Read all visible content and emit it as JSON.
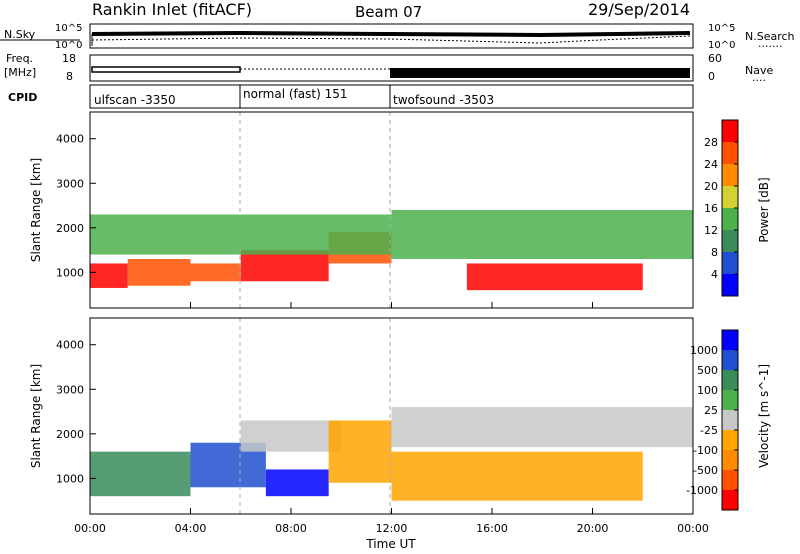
{
  "header": {
    "station": "Rankin Inlet (fitACF)",
    "beam": "Beam 07",
    "date": "29/Sep/2014"
  },
  "sky_panel": {
    "left_label": "N.Sky",
    "right_label": "N.Search",
    "ytick_top": "10^5",
    "ytick_bottom": "10^0",
    "right_legend_dots": "·······"
  },
  "freq_panel": {
    "left_label_line1": "Freq.",
    "left_label_line2": "[MHz]",
    "left_tick_top": "18",
    "left_tick_bottom": "8",
    "right_tick_top": "60",
    "right_tick_bottom": "0",
    "right_label": "Nave",
    "right_legend_dots": "····"
  },
  "cpid_panel": {
    "label": "CPID",
    "segments": [
      {
        "name": "ulfscan -3350",
        "start_hour": 0,
        "end_hour": 6
      },
      {
        "name": "normal (fast) 151",
        "start_hour": 6,
        "end_hour": 12
      },
      {
        "name": "twofsound -3503",
        "start_hour": 12,
        "end_hour": 24
      }
    ]
  },
  "colors": {
    "power": [
      "#0000ff",
      "#2050d0",
      "#3a8c5a",
      "#4cb04c",
      "#d2d232",
      "#ff8c00",
      "#ff5000",
      "#ff0000"
    ],
    "velocity": [
      "#0000ff",
      "#2050d0",
      "#3a8c5a",
      "#4cb04c",
      "#c8c8c8",
      "#ffa500",
      "#ff8c00",
      "#ff5000",
      "#ff0000"
    ]
  },
  "chart_data": [
    {
      "type": "heatmap",
      "name": "power",
      "ylabel": "Slant Range [km]",
      "xlim": [
        0,
        24
      ],
      "ylim": [
        200,
        4600
      ],
      "yticks": [
        1000,
        2000,
        3000,
        4000
      ],
      "xticks": [
        "00:00",
        "04:00",
        "08:00",
        "12:00",
        "16:00",
        "20:00",
        "00:00"
      ],
      "colorbar": {
        "label": "Power [dB]",
        "ticks": [
          "4",
          "8",
          "12",
          "16",
          "20",
          "24",
          "28"
        ],
        "range": [
          0,
          32
        ]
      },
      "bands": [
        {
          "x": [
            0,
            1.5
          ],
          "y": [
            650,
            1200
          ],
          "value": 28
        },
        {
          "x": [
            1.5,
            4
          ],
          "y": [
            700,
            1300
          ],
          "value": 26
        },
        {
          "x": [
            4,
            6
          ],
          "y": [
            800,
            1200
          ],
          "value": 24
        },
        {
          "x": [
            6,
            9.5
          ],
          "y": [
            800,
            1500
          ],
          "value": 28
        },
        {
          "x": [
            9.5,
            12
          ],
          "y": [
            1200,
            1900
          ],
          "value": 26
        },
        {
          "x": [
            15,
            22
          ],
          "y": [
            600,
            1200
          ],
          "value": 28
        },
        {
          "x": [
            0,
            12
          ],
          "y": [
            1400,
            2300
          ],
          "value": 12
        },
        {
          "x": [
            12,
            24
          ],
          "y": [
            1300,
            2400
          ],
          "value": 14
        }
      ]
    },
    {
      "type": "heatmap",
      "name": "velocity",
      "ylabel": "Slant Range [km]",
      "xlabel": "Time UT",
      "xlim": [
        0,
        24
      ],
      "ylim": [
        200,
        4600
      ],
      "yticks": [
        1000,
        2000,
        3000,
        4000
      ],
      "xticks": [
        "00:00",
        "04:00",
        "08:00",
        "12:00",
        "16:00",
        "20:00",
        "00:00"
      ],
      "colorbar": {
        "label": "Velocity [m s^-1]",
        "ticks": [
          "1000",
          "500",
          "100",
          "25",
          "-25",
          "-100",
          "-500",
          "-1000"
        ]
      },
      "bands": [
        {
          "x": [
            0,
            4
          ],
          "y": [
            600,
            1600
          ],
          "value": 100
        },
        {
          "x": [
            4,
            7
          ],
          "y": [
            800,
            1800
          ],
          "value": 500
        },
        {
          "x": [
            7,
            9.5
          ],
          "y": [
            600,
            1200
          ],
          "value": 1000
        },
        {
          "x": [
            6,
            10
          ],
          "y": [
            1600,
            2300
          ],
          "value": 0
        },
        {
          "x": [
            9.5,
            12
          ],
          "y": [
            900,
            2300
          ],
          "value": -100
        },
        {
          "x": [
            12,
            22
          ],
          "y": [
            500,
            1600
          ],
          "value": -100
        },
        {
          "x": [
            12,
            24
          ],
          "y": [
            1700,
            2600
          ],
          "value": 0
        }
      ]
    }
  ]
}
